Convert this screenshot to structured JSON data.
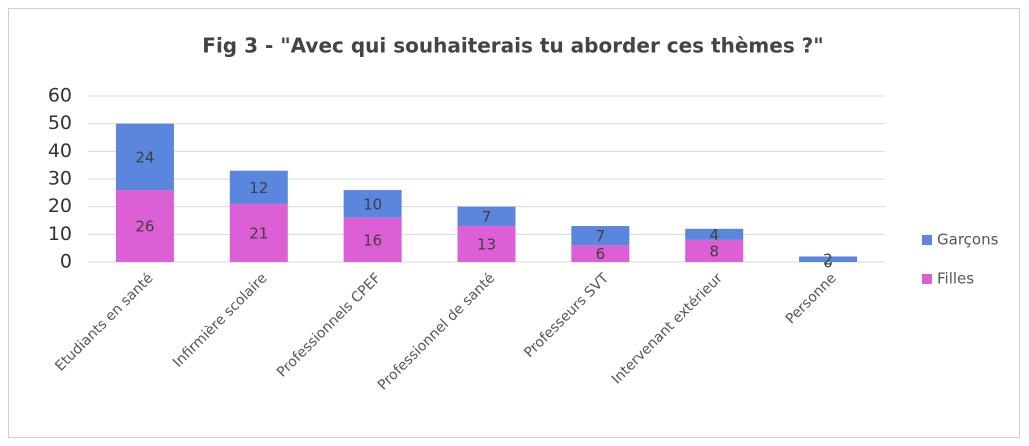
{
  "chart_data": {
    "type": "stacked_bar",
    "title": "Fig 3 - \"Avec qui souhaiterais tu aborder ces thèmes ?\"",
    "categories": [
      "Etudiants en santé",
      "Infirmière scolaire",
      "Professionnels CPEF",
      "Professionnel de santé",
      "Professeurs SVT",
      "Intervenant extérieur",
      "Personne"
    ],
    "series": [
      {
        "name": "Filles",
        "color": "#dd5fd6",
        "values": [
          26,
          21,
          16,
          13,
          6,
          8,
          0
        ]
      },
      {
        "name": "Garçons",
        "color": "#5b86de",
        "values": [
          24,
          12,
          10,
          7,
          7,
          4,
          2
        ]
      }
    ],
    "ylim": [
      0,
      60
    ],
    "yticks": [
      0,
      10,
      20,
      30,
      40,
      50,
      60
    ],
    "grid": true,
    "legend": "right"
  }
}
